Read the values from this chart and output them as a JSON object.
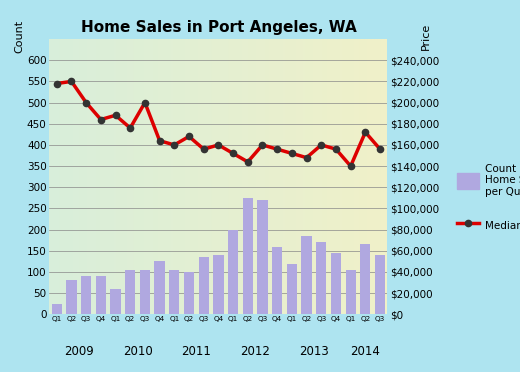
{
  "title": "Home Sales in Port Angeles, WA",
  "quarters": [
    "Q1",
    "Q2",
    "Q3",
    "Q4",
    "Q1",
    "Q2",
    "Q3",
    "Q4",
    "Q1",
    "Q2",
    "Q3",
    "Q4",
    "Q1",
    "Q2",
    "Q3",
    "Q4",
    "Q1",
    "Q2",
    "Q3",
    "Q4",
    "Q1",
    "Q2",
    "Q3"
  ],
  "years": [
    "2009",
    "2009",
    "2009",
    "2009",
    "2010",
    "2010",
    "2010",
    "2010",
    "2011",
    "2011",
    "2011",
    "2011",
    "2012",
    "2012",
    "2012",
    "2012",
    "2013",
    "2013",
    "2013",
    "2013",
    "2014",
    "2014",
    "2014"
  ],
  "bar_values": [
    25,
    80,
    90,
    90,
    60,
    105,
    105,
    125,
    105,
    100,
    135,
    140,
    200,
    275,
    270,
    160,
    120,
    185,
    170,
    145,
    105,
    165,
    140
  ],
  "price_values": [
    218000,
    220000,
    200000,
    184000,
    188000,
    176000,
    200000,
    164000,
    160000,
    168000,
    156000,
    160000,
    152000,
    144000,
    160000,
    156000,
    152000,
    148000,
    160000,
    156000,
    140000,
    172000,
    156000
  ],
  "bar_color": "#b0a8e0",
  "line_color": "#dd0000",
  "marker_color": "#333333",
  "bg_color_left": "#d8eeda",
  "bg_color_right": "#f0f0c8",
  "outer_bg": "#aee4f0",
  "left_ylabel": "Count",
  "right_ylabel": "Price",
  "left_ylim": [
    0,
    650
  ],
  "right_ylim": [
    0,
    260000
  ],
  "left_yticks": [
    0,
    50,
    100,
    150,
    200,
    250,
    300,
    350,
    400,
    450,
    500,
    550,
    600
  ],
  "right_yticks": [
    0,
    20000,
    40000,
    60000,
    80000,
    100000,
    120000,
    140000,
    160000,
    180000,
    200000,
    220000,
    240000
  ],
  "legend_bar_label": "Count of\nHome Sales\nper Quarter",
  "legend_line_label": "Median Price"
}
